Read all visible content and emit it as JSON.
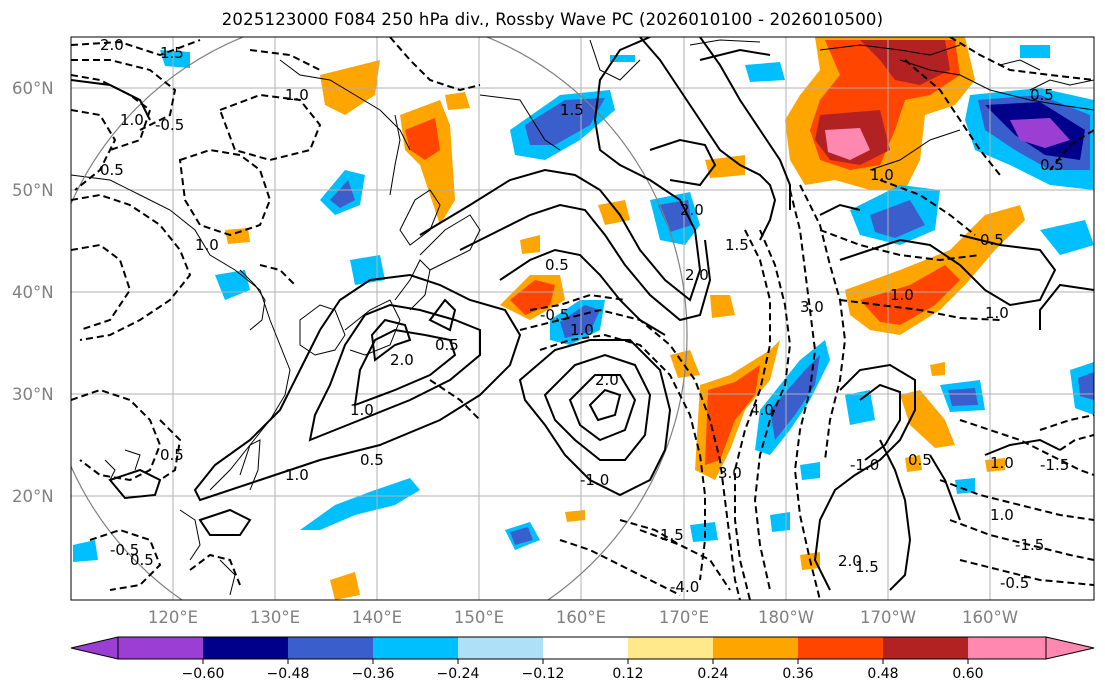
{
  "title": "2025123000 F084 250 hPa div., Rossby Wave PC (2026010100 - 2026010500)",
  "lat_labels": [
    "60°N",
    "50°N",
    "40°N",
    "30°N",
    "20°N"
  ],
  "lon_labels": [
    "120°E",
    "130°E",
    "140°E",
    "150°E",
    "160°E",
    "170°E",
    "180°W",
    "170°W",
    "160°W"
  ],
  "colorbar": {
    "ticks": [
      "−0.60",
      "−0.48",
      "−0.36",
      "−0.24",
      "−0.12",
      "0.12",
      "0.24",
      "0.36",
      "0.48",
      "0.60"
    ],
    "colors": [
      "#9b3fd4",
      "#00008b",
      "#3a5fcd",
      "#00bfff",
      "#aee0f8",
      "#ffffff",
      "#ffe98a",
      "#ffa500",
      "#ff4500",
      "#b22222",
      "#ff88b0"
    ]
  },
  "contour_labels": [
    "2.0",
    "1.5",
    "1.0",
    "-0.5",
    "0.5",
    "1.0",
    "1.0",
    "0.5",
    "2.0",
    "1.5",
    "0.5",
    "1.0",
    "2.0",
    "-1.0",
    "-0.5",
    "1.0",
    "0.5",
    "2.0",
    "1.5",
    "2.0",
    "3.0",
    "4.0",
    "3.0",
    "1.0",
    "1.0",
    "0.5",
    "1.0",
    "1.0",
    "-1.5",
    "-0.5",
    "-0.5",
    "1.5",
    "-4.0",
    "2.0",
    "1.5",
    "-1.0",
    "0.5",
    "0.5",
    "0.5",
    "0.5",
    "-1.5",
    "1.0",
    "0.5",
    "1.0"
  ],
  "map": {
    "land_color": "#000000",
    "grid_color": "#b0b0b0",
    "circle_color": "#808080"
  }
}
